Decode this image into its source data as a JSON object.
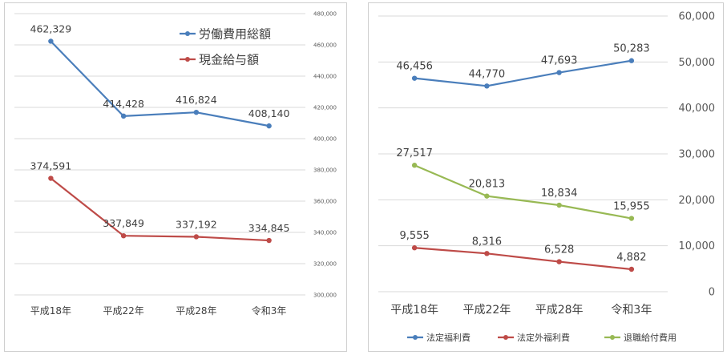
{
  "chart_data": [
    {
      "type": "line",
      "categories": [
        "平成18年",
        "平成22年",
        "平成28年",
        "令和3年"
      ],
      "ylim": [
        300000,
        480000
      ],
      "yticks": [
        "300,000",
        "320,000",
        "340,000",
        "360,000",
        "380,000",
        "400,000",
        "420,000",
        "440,000",
        "460,000",
        "480,000"
      ],
      "ytick_values": [
        300000,
        320000,
        340000,
        360000,
        380000,
        400000,
        420000,
        440000,
        460000,
        480000
      ],
      "y_axis_side": "right",
      "grid": true,
      "legend_position": "top-right",
      "series": [
        {
          "name": "労働費用総額",
          "color": "#4a7ebb",
          "values": [
            462329,
            414428,
            416824,
            408140
          ],
          "labels": [
            "462,329",
            "414,428",
            "416,824",
            "408,140"
          ]
        },
        {
          "name": "現金給与額",
          "color": "#be4b48",
          "values": [
            374591,
            337849,
            337192,
            334845
          ],
          "labels": [
            "374,591",
            "337,849",
            "337,192",
            "334,845"
          ]
        }
      ]
    },
    {
      "type": "line",
      "categories": [
        "平成18年",
        "平成22年",
        "平成28年",
        "令和3年"
      ],
      "ylim": [
        0,
        60000
      ],
      "yticks": [
        "0",
        "10,000",
        "20,000",
        "30,000",
        "40,000",
        "50,000",
        "60,000"
      ],
      "ytick_values": [
        0,
        10000,
        20000,
        30000,
        40000,
        50000,
        60000
      ],
      "y_axis_side": "right",
      "grid": true,
      "legend_position": "bottom",
      "series": [
        {
          "name": "法定福利費",
          "color": "#4a7ebb",
          "values": [
            46456,
            44770,
            47693,
            50283
          ],
          "labels": [
            "46,456",
            "44,770",
            "47,693",
            "50,283"
          ]
        },
        {
          "name": "法定外福利費",
          "color": "#be4b48",
          "values": [
            9555,
            8316,
            6528,
            4882
          ],
          "labels": [
            "9,555",
            "8,316",
            "6,528",
            "4,882"
          ]
        },
        {
          "name": "退職給付費用",
          "color": "#98b954",
          "values": [
            27517,
            20813,
            18834,
            15955
          ],
          "labels": [
            "27,517",
            "20,813",
            "18,834",
            "15,955"
          ]
        }
      ]
    }
  ]
}
